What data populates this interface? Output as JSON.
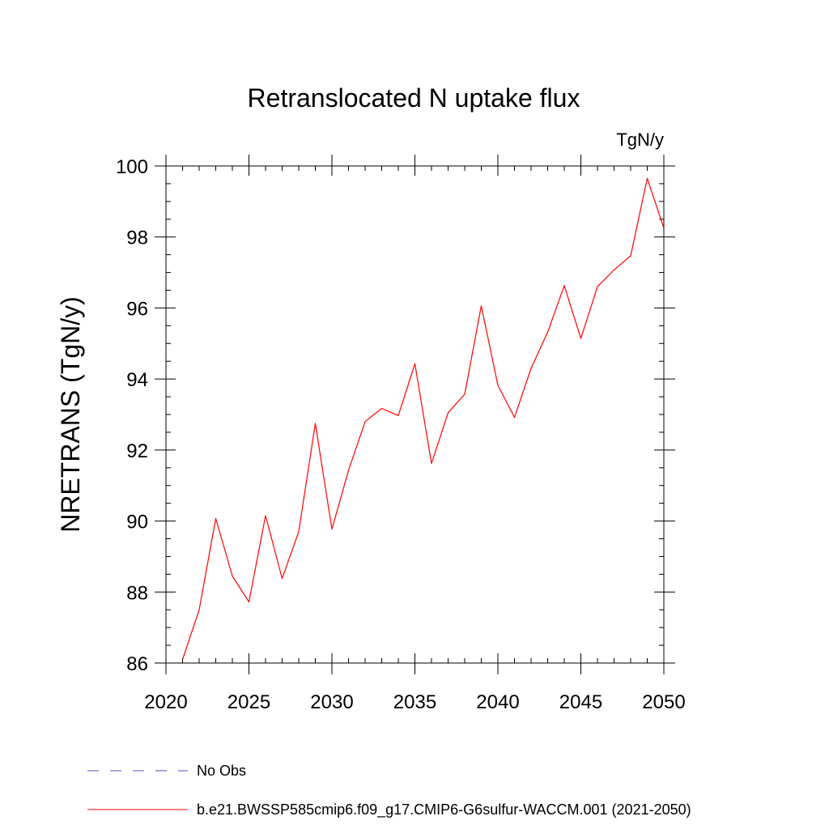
{
  "chart_data": {
    "type": "line",
    "title": "Retranslocated N uptake flux",
    "units": "TgN/y",
    "xlabel": "",
    "ylabel": "NRETRANS  (TgN/y)",
    "xlim": [
      2020,
      2050
    ],
    "ylim": [
      86,
      100
    ],
    "xticks": [
      2020,
      2025,
      2030,
      2035,
      2040,
      2045,
      2050
    ],
    "yticks": [
      86,
      88,
      90,
      92,
      94,
      96,
      98,
      100
    ],
    "grid": false,
    "legend_position": "bottom",
    "series": [
      {
        "name": "b.e21.BWSSP585cmip6.f09_g17.CMIP6-G6sulfur-WACCM.001 (2021-2050)",
        "color": "#ff0000",
        "x": [
          2021,
          2022,
          2023,
          2024,
          2025,
          2026,
          2027,
          2028,
          2029,
          2030,
          2031,
          2032,
          2033,
          2034,
          2035,
          2036,
          2037,
          2038,
          2039,
          2040,
          2041,
          2042,
          2043,
          2044,
          2045,
          2046,
          2047,
          2048,
          2049,
          2050
        ],
        "values": [
          86.1,
          87.5,
          90.07,
          88.45,
          87.72,
          90.15,
          88.38,
          89.7,
          92.75,
          89.77,
          91.43,
          92.8,
          93.17,
          92.97,
          94.43,
          91.62,
          93.05,
          93.57,
          96.06,
          93.82,
          92.92,
          94.3,
          95.32,
          96.63,
          95.14,
          96.6,
          97.07,
          97.47,
          99.65,
          98.25
        ]
      }
    ],
    "legend": [
      {
        "label": "No Obs",
        "color": "#5a4fb0",
        "style": "dashed"
      },
      {
        "label": "b.e21.BWSSP585cmip6.f09_g17.CMIP6-G6sulfur-WACCM.001 (2021-2050)",
        "color": "#ff0000",
        "style": "solid"
      }
    ]
  }
}
